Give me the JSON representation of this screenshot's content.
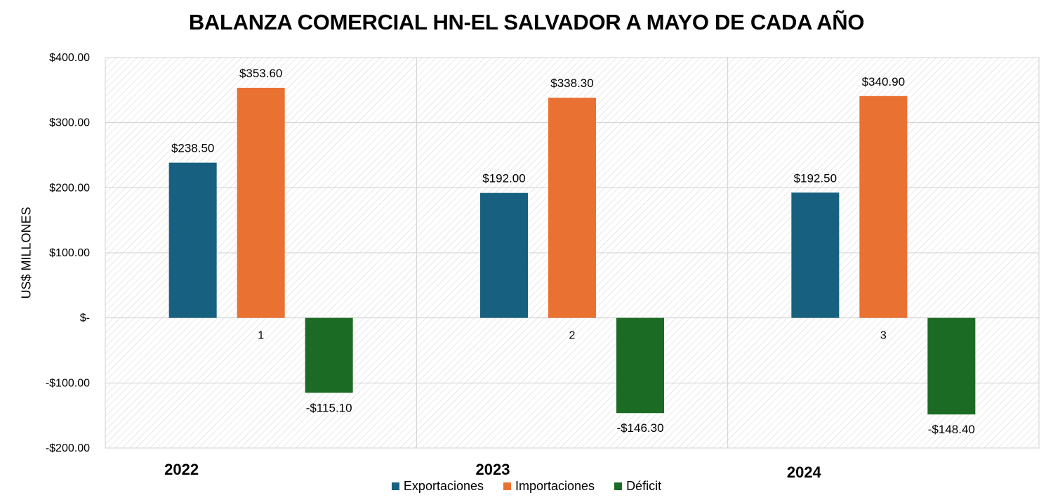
{
  "chart_data": {
    "type": "bar",
    "title": "BALANZA COMERCIAL HN-EL SALVADOR A MAYO DE CADA AÑO",
    "ylabel": "US$ MILLONES",
    "xlabel": "",
    "ylim": [
      -200,
      400
    ],
    "yticks": [
      400,
      300,
      200,
      100,
      0,
      -100,
      -200
    ],
    "ytick_labels": [
      "$400.00",
      "$300.00",
      "$200.00",
      "$100.00",
      "$-",
      "-$100.00",
      "-$200.00"
    ],
    "categories": [
      "1",
      "2",
      "3"
    ],
    "year_labels": [
      "2022",
      "2023",
      "2024"
    ],
    "grid": true,
    "legend_position": "bottom",
    "series": [
      {
        "name": "Exportaciones",
        "color": "#17607f",
        "values": [
          238.5,
          192.0,
          192.5
        ],
        "labels": [
          "$238.50",
          "$192.00",
          "$192.50"
        ]
      },
      {
        "name": "Importaciones",
        "color": "#e97132",
        "values": [
          353.6,
          338.3,
          340.9
        ],
        "labels": [
          "$353.60",
          "$338.30",
          "$340.90"
        ]
      },
      {
        "name": "Déficit",
        "color": "#1c6b24",
        "values": [
          -115.1,
          -146.3,
          -148.4
        ],
        "labels": [
          "-$115.10",
          "-$146.30",
          "-$148.40"
        ]
      }
    ]
  }
}
